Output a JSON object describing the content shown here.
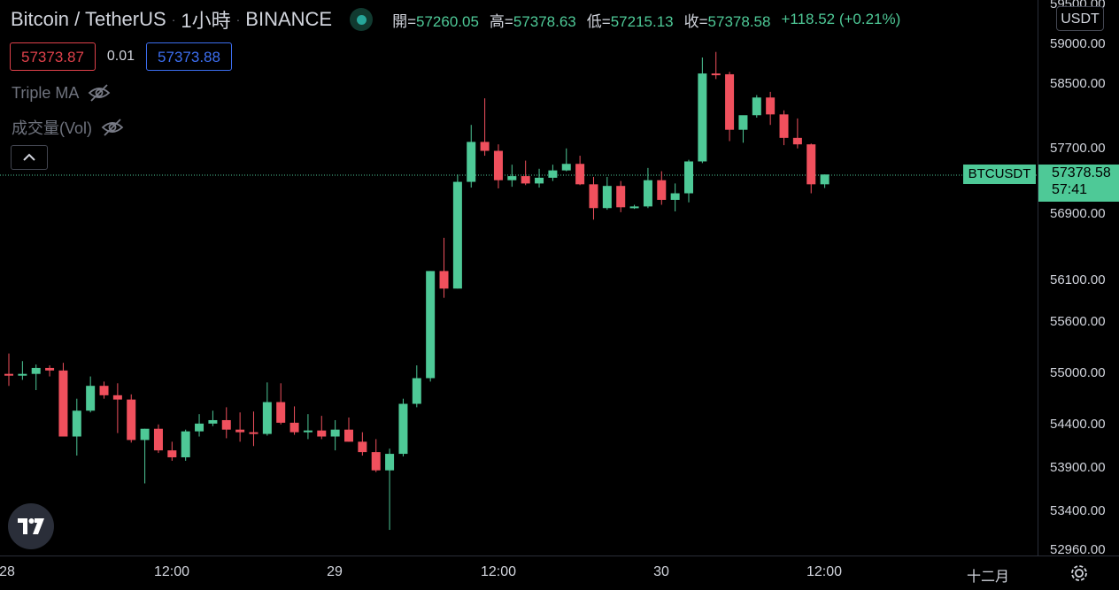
{
  "header": {
    "symbol_name": "Bitcoin / TetherUS",
    "separator": "·",
    "interval": "1小時",
    "exchange": "BINANCE",
    "ohlc": {
      "open_label": "開=",
      "open": "57260.05",
      "high_label": "高=",
      "high": "57378.63",
      "low_label": "低=",
      "low": "57215.13",
      "close_label": "收=",
      "close": "57378.58",
      "change": "+118.52 (+0.21%)"
    },
    "sell_price": "57373.87",
    "spread": "0.01",
    "buy_price": "57373.88"
  },
  "indicators": [
    {
      "label": "Triple MA",
      "icon": "eye-hidden-icon"
    },
    {
      "label": "成交量(Vol)",
      "icon": "eye-hidden-icon"
    }
  ],
  "price_axis": {
    "unit": "USDT",
    "labels": [
      "59500.00",
      "59000.00",
      "58500.00",
      "57700.00",
      "56900.00",
      "56100.00",
      "55600.00",
      "55000.00",
      "54400.00",
      "53900.00",
      "53400.00",
      "52960.00"
    ]
  },
  "last_price": {
    "symbol": "BTCUSDT",
    "price": "57378.58",
    "countdown": "57:41"
  },
  "time_axis": {
    "labels": [
      "28",
      "12:00",
      "29",
      "12:00",
      "30",
      "12:00",
      "十二月"
    ]
  },
  "colors": {
    "up": "#4ec997",
    "down": "#f0505d",
    "background": "#000000",
    "text": "#d1d4dc",
    "muted": "#787b86"
  },
  "chart_data": {
    "type": "candlestick",
    "y_scale": "log",
    "ylim": [
      52960,
      59500
    ],
    "candles": [
      {
        "o": 54990,
        "h": 55230,
        "l": 54850,
        "c": 54980
      },
      {
        "o": 54980,
        "h": 55140,
        "l": 54920,
        "c": 54990
      },
      {
        "o": 54990,
        "h": 55100,
        "l": 54800,
        "c": 55060
      },
      {
        "o": 55060,
        "h": 55090,
        "l": 54960,
        "c": 55030
      },
      {
        "o": 55030,
        "h": 55120,
        "l": 54260,
        "c": 54260
      },
      {
        "o": 54260,
        "h": 54700,
        "l": 54040,
        "c": 54560
      },
      {
        "o": 54560,
        "h": 54960,
        "l": 54540,
        "c": 54850
      },
      {
        "o": 54850,
        "h": 54900,
        "l": 54700,
        "c": 54740
      },
      {
        "o": 54740,
        "h": 54880,
        "l": 54300,
        "c": 54690
      },
      {
        "o": 54690,
        "h": 54750,
        "l": 54190,
        "c": 54220
      },
      {
        "o": 54220,
        "h": 54350,
        "l": 53720,
        "c": 54350
      },
      {
        "o": 54350,
        "h": 54400,
        "l": 54070,
        "c": 54100
      },
      {
        "o": 54100,
        "h": 54200,
        "l": 53980,
        "c": 54020
      },
      {
        "o": 54020,
        "h": 54340,
        "l": 53980,
        "c": 54320
      },
      {
        "o": 54320,
        "h": 54520,
        "l": 54260,
        "c": 54410
      },
      {
        "o": 54410,
        "h": 54560,
        "l": 54380,
        "c": 54450
      },
      {
        "o": 54450,
        "h": 54600,
        "l": 54240,
        "c": 54340
      },
      {
        "o": 54340,
        "h": 54540,
        "l": 54200,
        "c": 54310
      },
      {
        "o": 54310,
        "h": 54550,
        "l": 54150,
        "c": 54290
      },
      {
        "o": 54290,
        "h": 54890,
        "l": 54270,
        "c": 54660
      },
      {
        "o": 54660,
        "h": 54880,
        "l": 54400,
        "c": 54420
      },
      {
        "o": 54420,
        "h": 54610,
        "l": 54280,
        "c": 54310
      },
      {
        "o": 54310,
        "h": 54520,
        "l": 54230,
        "c": 54330
      },
      {
        "o": 54330,
        "h": 54500,
        "l": 54230,
        "c": 54260
      },
      {
        "o": 54260,
        "h": 54450,
        "l": 54100,
        "c": 54340
      },
      {
        "o": 54340,
        "h": 54480,
        "l": 54200,
        "c": 54200
      },
      {
        "o": 54200,
        "h": 54310,
        "l": 54040,
        "c": 54080
      },
      {
        "o": 54080,
        "h": 54230,
        "l": 53850,
        "c": 53870
      },
      {
        "o": 53870,
        "h": 54120,
        "l": 53190,
        "c": 54060
      },
      {
        "o": 54060,
        "h": 54700,
        "l": 54030,
        "c": 54640
      },
      {
        "o": 54640,
        "h": 55090,
        "l": 54600,
        "c": 54940
      },
      {
        "o": 54940,
        "h": 56210,
        "l": 54900,
        "c": 56210
      },
      {
        "o": 56210,
        "h": 56610,
        "l": 55890,
        "c": 56000
      },
      {
        "o": 56000,
        "h": 57380,
        "l": 56000,
        "c": 57290
      },
      {
        "o": 57290,
        "h": 57990,
        "l": 57220,
        "c": 57780
      },
      {
        "o": 57780,
        "h": 58320,
        "l": 57610,
        "c": 57670
      },
      {
        "o": 57670,
        "h": 57750,
        "l": 57210,
        "c": 57310
      },
      {
        "o": 57310,
        "h": 57500,
        "l": 57230,
        "c": 57360
      },
      {
        "o": 57360,
        "h": 57550,
        "l": 57250,
        "c": 57270
      },
      {
        "o": 57270,
        "h": 57450,
        "l": 57220,
        "c": 57340
      },
      {
        "o": 57340,
        "h": 57500,
        "l": 57300,
        "c": 57430
      },
      {
        "o": 57430,
        "h": 57700,
        "l": 57420,
        "c": 57510
      },
      {
        "o": 57510,
        "h": 57610,
        "l": 57250,
        "c": 57260
      },
      {
        "o": 57260,
        "h": 57350,
        "l": 56830,
        "c": 56970
      },
      {
        "o": 56970,
        "h": 57350,
        "l": 56950,
        "c": 57240
      },
      {
        "o": 57240,
        "h": 57300,
        "l": 56920,
        "c": 56980
      },
      {
        "o": 56980,
        "h": 57010,
        "l": 56960,
        "c": 56990
      },
      {
        "o": 56990,
        "h": 57460,
        "l": 56970,
        "c": 57310
      },
      {
        "o": 57310,
        "h": 57420,
        "l": 57010,
        "c": 57070
      },
      {
        "o": 57070,
        "h": 57270,
        "l": 56930,
        "c": 57150
      },
      {
        "o": 57150,
        "h": 57560,
        "l": 57040,
        "c": 57540
      },
      {
        "o": 57540,
        "h": 58830,
        "l": 57520,
        "c": 58630
      },
      {
        "o": 58630,
        "h": 58900,
        "l": 58560,
        "c": 58620
      },
      {
        "o": 58620,
        "h": 58650,
        "l": 57790,
        "c": 57930
      },
      {
        "o": 57930,
        "h": 58100,
        "l": 57770,
        "c": 58110
      },
      {
        "o": 58110,
        "h": 58360,
        "l": 58080,
        "c": 58330
      },
      {
        "o": 58330,
        "h": 58400,
        "l": 57990,
        "c": 58120
      },
      {
        "o": 58120,
        "h": 58170,
        "l": 57740,
        "c": 57830
      },
      {
        "o": 57830,
        "h": 58070,
        "l": 57700,
        "c": 57750
      },
      {
        "o": 57750,
        "h": 57760,
        "l": 57150,
        "c": 57260
      },
      {
        "o": 57260,
        "h": 57380,
        "l": 57215,
        "c": 57380
      }
    ]
  }
}
